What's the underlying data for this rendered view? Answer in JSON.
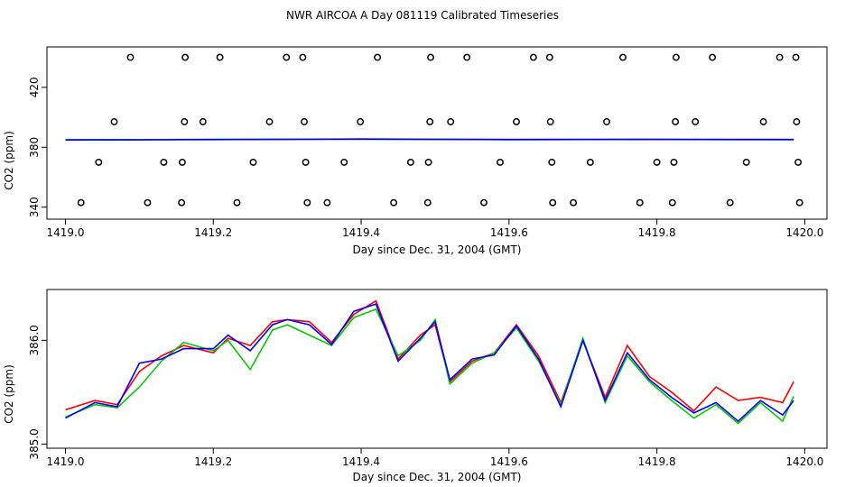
{
  "figure": {
    "title": "NWR AIRCOA A  Day 081119  Calibrated Timeseries"
  },
  "chart_data": [
    {
      "type": "scatter",
      "xlabel": "Day since Dec. 31, 2004 (GMT)",
      "ylabel": "CO2 (ppm)",
      "xlim": [
        1418.975,
        1420.03
      ],
      "ylim": [
        332,
        447
      ],
      "x_ticks": [
        1419.0,
        1419.2,
        1419.4,
        1419.6,
        1419.8,
        1420.0
      ],
      "x_tick_labels": [
        "1419.0",
        "1419.2",
        "1419.4",
        "1419.6",
        "1419.8",
        "1420.0"
      ],
      "y_ticks": [
        340,
        380,
        420
      ],
      "y_tick_labels": [
        "340",
        "380",
        "420"
      ],
      "grid": false,
      "markers": [
        {
          "x": 1419.021,
          "y": 343
        },
        {
          "x": 1419.045,
          "y": 370
        },
        {
          "x": 1419.066,
          "y": 397
        },
        {
          "x": 1419.088,
          "y": 440
        },
        {
          "x": 1419.111,
          "y": 343
        },
        {
          "x": 1419.133,
          "y": 370
        },
        {
          "x": 1419.157,
          "y": 343
        },
        {
          "x": 1419.158,
          "y": 370
        },
        {
          "x": 1419.161,
          "y": 397
        },
        {
          "x": 1419.162,
          "y": 440
        },
        {
          "x": 1419.186,
          "y": 397
        },
        {
          "x": 1419.209,
          "y": 440
        },
        {
          "x": 1419.232,
          "y": 343
        },
        {
          "x": 1419.254,
          "y": 370
        },
        {
          "x": 1419.276,
          "y": 397
        },
        {
          "x": 1419.299,
          "y": 440
        },
        {
          "x": 1419.321,
          "y": 440
        },
        {
          "x": 1419.323,
          "y": 397
        },
        {
          "x": 1419.325,
          "y": 370
        },
        {
          "x": 1419.327,
          "y": 343
        },
        {
          "x": 1419.354,
          "y": 343
        },
        {
          "x": 1419.377,
          "y": 370
        },
        {
          "x": 1419.399,
          "y": 397
        },
        {
          "x": 1419.422,
          "y": 440
        },
        {
          "x": 1419.444,
          "y": 343
        },
        {
          "x": 1419.467,
          "y": 370
        },
        {
          "x": 1419.49,
          "y": 343
        },
        {
          "x": 1419.491,
          "y": 370
        },
        {
          "x": 1419.493,
          "y": 397
        },
        {
          "x": 1419.494,
          "y": 440
        },
        {
          "x": 1419.521,
          "y": 397
        },
        {
          "x": 1419.543,
          "y": 440
        },
        {
          "x": 1419.566,
          "y": 343
        },
        {
          "x": 1419.588,
          "y": 370
        },
        {
          "x": 1419.61,
          "y": 397
        },
        {
          "x": 1419.633,
          "y": 440
        },
        {
          "x": 1419.655,
          "y": 440
        },
        {
          "x": 1419.656,
          "y": 397
        },
        {
          "x": 1419.658,
          "y": 370
        },
        {
          "x": 1419.659,
          "y": 343
        },
        {
          "x": 1419.687,
          "y": 343
        },
        {
          "x": 1419.71,
          "y": 370
        },
        {
          "x": 1419.732,
          "y": 397
        },
        {
          "x": 1419.754,
          "y": 440
        },
        {
          "x": 1419.777,
          "y": 343
        },
        {
          "x": 1419.8,
          "y": 370
        },
        {
          "x": 1419.821,
          "y": 343
        },
        {
          "x": 1419.823,
          "y": 370
        },
        {
          "x": 1419.825,
          "y": 397
        },
        {
          "x": 1419.826,
          "y": 440
        },
        {
          "x": 1419.852,
          "y": 397
        },
        {
          "x": 1419.875,
          "y": 440
        },
        {
          "x": 1419.899,
          "y": 343
        },
        {
          "x": 1419.921,
          "y": 370
        },
        {
          "x": 1419.944,
          "y": 397
        },
        {
          "x": 1419.966,
          "y": 440
        },
        {
          "x": 1419.988,
          "y": 440
        },
        {
          "x": 1419.989,
          "y": 397
        },
        {
          "x": 1419.991,
          "y": 370
        },
        {
          "x": 1419.993,
          "y": 343
        }
      ],
      "series": [
        {
          "color": "#ff0000",
          "x": [
            1419.0,
            1419.2,
            1419.4,
            1419.6,
            1419.8,
            1419.985
          ],
          "y": [
            384.8,
            385.2,
            385.5,
            385.2,
            385.3,
            385.2
          ]
        },
        {
          "color": "#00cc00",
          "x": [
            1419.0,
            1419.2,
            1419.4,
            1419.6,
            1419.8,
            1419.985
          ],
          "y": [
            384.9,
            385.3,
            385.4,
            385.1,
            385.2,
            385.1
          ]
        },
        {
          "color": "#0000ff",
          "x": [
            1419.0,
            1419.2,
            1419.4,
            1419.6,
            1419.8,
            1419.985
          ],
          "y": [
            384.9,
            385.1,
            385.4,
            385.1,
            385.2,
            385.1
          ]
        }
      ]
    },
    {
      "type": "line",
      "xlabel": "Day since Dec. 31, 2004 (GMT)",
      "ylabel": "CO2 (ppm)",
      "xlim": [
        1418.975,
        1420.03
      ],
      "ylim": [
        384.96,
        386.49
      ],
      "x_ticks": [
        1419.0,
        1419.2,
        1419.4,
        1419.6,
        1419.8,
        1420.0
      ],
      "x_tick_labels": [
        "1419.0",
        "1419.2",
        "1419.4",
        "1419.6",
        "1419.8",
        "1420.0"
      ],
      "y_ticks": [
        385.0,
        386.0
      ],
      "y_tick_labels": [
        "385.0",
        "386.0"
      ],
      "grid": false,
      "series": [
        {
          "color": "#ff0000",
          "x": [
            1419.0,
            1419.04,
            1419.07,
            1419.1,
            1419.13,
            1419.16,
            1419.2,
            1419.22,
            1419.25,
            1419.28,
            1419.3,
            1419.33,
            1419.36,
            1419.39,
            1419.42,
            1419.45,
            1419.48,
            1419.5,
            1419.52,
            1419.55,
            1419.58,
            1419.61,
            1419.64,
            1419.67,
            1419.7,
            1419.73,
            1419.76,
            1419.79,
            1419.82,
            1419.85,
            1419.88,
            1419.91,
            1419.94,
            1419.97,
            1419.985
          ],
          "y": [
            385.33,
            385.42,
            385.38,
            385.7,
            385.85,
            385.95,
            385.88,
            386.02,
            385.95,
            386.18,
            386.2,
            386.18,
            385.98,
            386.25,
            386.38,
            385.82,
            386.05,
            386.15,
            385.6,
            385.8,
            385.88,
            386.15,
            385.85,
            385.4,
            386.0,
            385.45,
            385.95,
            385.65,
            385.5,
            385.32,
            385.55,
            385.42,
            385.45,
            385.4,
            385.6
          ]
        },
        {
          "color": "#00cc00",
          "x": [
            1419.0,
            1419.04,
            1419.07,
            1419.1,
            1419.13,
            1419.16,
            1419.2,
            1419.22,
            1419.25,
            1419.28,
            1419.3,
            1419.33,
            1419.36,
            1419.39,
            1419.42,
            1419.45,
            1419.48,
            1419.5,
            1419.52,
            1419.55,
            1419.58,
            1419.61,
            1419.64,
            1419.67,
            1419.7,
            1419.73,
            1419.76,
            1419.79,
            1419.82,
            1419.85,
            1419.88,
            1419.91,
            1419.94,
            1419.97,
            1419.985
          ],
          "y": [
            385.26,
            385.38,
            385.35,
            385.55,
            385.8,
            385.98,
            385.9,
            386.0,
            385.72,
            386.1,
            386.15,
            386.05,
            385.95,
            386.22,
            386.3,
            385.85,
            386.0,
            386.2,
            385.58,
            385.78,
            385.88,
            386.12,
            385.8,
            385.38,
            386.02,
            385.4,
            385.85,
            385.6,
            385.42,
            385.25,
            385.38,
            385.2,
            385.4,
            385.22,
            385.46
          ]
        },
        {
          "color": "#0000ff",
          "x": [
            1419.0,
            1419.04,
            1419.07,
            1419.1,
            1419.13,
            1419.16,
            1419.2,
            1419.22,
            1419.25,
            1419.28,
            1419.3,
            1419.33,
            1419.36,
            1419.39,
            1419.42,
            1419.45,
            1419.48,
            1419.5,
            1419.52,
            1419.55,
            1419.58,
            1419.61,
            1419.64,
            1419.67,
            1419.7,
            1419.73,
            1419.76,
            1419.79,
            1419.82,
            1419.85,
            1419.88,
            1419.91,
            1419.94,
            1419.97,
            1419.985
          ],
          "y": [
            385.25,
            385.4,
            385.36,
            385.78,
            385.82,
            385.92,
            385.92,
            386.05,
            385.9,
            386.15,
            386.2,
            386.15,
            385.96,
            386.28,
            386.35,
            385.8,
            386.02,
            386.18,
            385.62,
            385.82,
            385.86,
            386.14,
            385.82,
            385.36,
            386.0,
            385.42,
            385.88,
            385.62,
            385.45,
            385.3,
            385.4,
            385.22,
            385.42,
            385.28,
            385.42
          ]
        }
      ]
    }
  ]
}
